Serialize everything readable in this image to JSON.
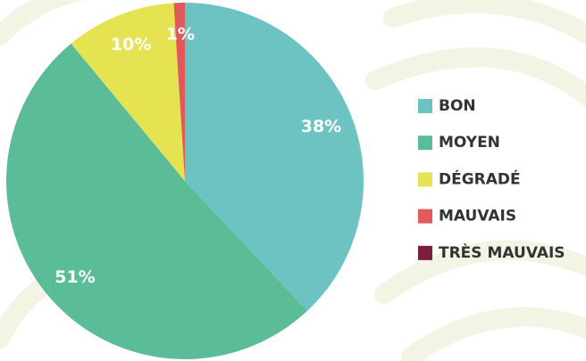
{
  "chart_data": {
    "type": "pie",
    "categories": [
      "BON",
      "MOYEN",
      "DÉGRADÉ",
      "MAUVAIS",
      "TRÈS MAUVAIS"
    ],
    "values": [
      38,
      51,
      10,
      1,
      0
    ],
    "value_labels": [
      "38%",
      "51%",
      "10%",
      "1%",
      null
    ],
    "colors": [
      "#6cc3c1",
      "#5bbd97",
      "#e5e352",
      "#e05a5a",
      "#7a1e3a"
    ],
    "legend": "right"
  }
}
